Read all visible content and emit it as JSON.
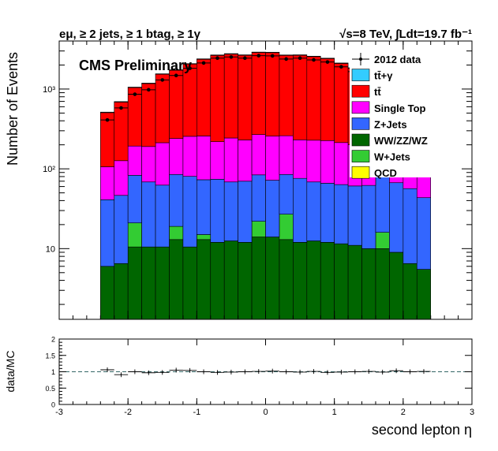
{
  "chart_data": [
    {
      "type": "bar",
      "subtype": "stacked-histogram",
      "header_left": "eμ, ≥ 2 jets, ≥ 1 btag, ≥ 1γ",
      "header_right": "√s=8 TeV, ∫Ldt=19.7 fb⁻¹",
      "annotation": "CMS Preliminary",
      "xlabel": "second lepton η",
      "ylabel": "Number of Events",
      "xlim": [
        -3,
        3
      ],
      "ylim": [
        1.3,
        4000
      ],
      "yscale": "log",
      "x_ticks": [
        "-3",
        "-2",
        "-1",
        "0",
        "1",
        "2",
        "3"
      ],
      "y_ticks": [
        {
          "value": 10,
          "label": "10"
        },
        {
          "value": 100,
          "label": "10²"
        },
        {
          "value": 1000,
          "label": "10³"
        }
      ],
      "legend_position": "top-right",
      "bin_edges": [
        -2.4,
        -2.2,
        -2.0,
        -1.8,
        -1.6,
        -1.4,
        -1.2,
        -1.0,
        -0.8,
        -0.6,
        -0.4,
        -0.2,
        0.0,
        0.2,
        0.4,
        0.6,
        0.8,
        1.0,
        1.2,
        1.4,
        1.6,
        1.8,
        2.0,
        2.2,
        2.4
      ],
      "stack_order_bottom_to_top": [
        "WW/ZZ/WZ",
        "W+Jets",
        "Z+Jets",
        "Single Top",
        "tt̄",
        "QCD",
        "tt̄+γ"
      ],
      "series": [
        {
          "name": "2012 data",
          "kind": "data",
          "color": "#000000",
          "values": [
            410,
            580,
            860,
            980,
            1300,
            1480,
            1820,
            2120,
            2440,
            2520,
            2440,
            2620,
            2600,
            2380,
            2440,
            2320,
            2180,
            1900,
            1650,
            1380,
            1040,
            830,
            580,
            410
          ]
        },
        {
          "name": "tt̄+γ",
          "kind": "stack",
          "color": "#33ccff",
          "values": [
            8,
            10,
            14,
            16,
            20,
            24,
            28,
            32,
            36,
            36,
            34,
            36,
            36,
            34,
            34,
            32,
            32,
            28,
            26,
            22,
            18,
            14,
            10,
            8
          ]
        },
        {
          "name": "tt̄",
          "kind": "stack",
          "color": "#ff0000",
          "values": [
            400,
            560,
            850,
            980,
            1320,
            1480,
            1800,
            2100,
            2420,
            2500,
            2420,
            2600,
            2600,
            2380,
            2420,
            2320,
            2180,
            1880,
            1620,
            1360,
            1040,
            840,
            580,
            400
          ]
        },
        {
          "name": "Single Top",
          "kind": "stack",
          "color": "#ff00ff",
          "values": [
            65,
            80,
            110,
            122,
            150,
            155,
            175,
            185,
            145,
            175,
            160,
            185,
            185,
            175,
            155,
            160,
            160,
            150,
            140,
            125,
            115,
            95,
            90,
            85
          ]
        },
        {
          "name": "Z+Jets",
          "kind": "stack",
          "color": "#3366ff",
          "values": [
            35,
            40,
            62,
            58,
            52,
            66,
            70,
            58,
            62,
            56,
            58,
            62,
            58,
            58,
            64,
            56,
            54,
            52,
            50,
            52,
            72,
            58,
            50,
            38
          ]
        },
        {
          "name": "WW/ZZ/WZ",
          "kind": "stack",
          "color": "#006600",
          "values": [
            6,
            6.5,
            10.5,
            10.5,
            10.5,
            13,
            10.5,
            13,
            12,
            12.5,
            12,
            14,
            14,
            13,
            12,
            12.5,
            12,
            11.5,
            11,
            10,
            10,
            9,
            6.5,
            5.5
          ]
        },
        {
          "name": "W+Jets",
          "kind": "stack",
          "color": "#33cc33",
          "values": [
            0,
            0,
            10.5,
            0,
            0,
            6,
            0,
            2,
            0,
            0,
            0,
            8,
            0,
            14,
            0,
            0,
            0,
            0,
            0,
            0,
            6,
            0,
            0,
            0
          ]
        },
        {
          "name": "QCD",
          "kind": "stack",
          "color": "#ffff00",
          "values": [
            0,
            0,
            0,
            0,
            0,
            0,
            0,
            0,
            0,
            0,
            0,
            0,
            0,
            0,
            0,
            0,
            0,
            0,
            0,
            0,
            0,
            0,
            0,
            0
          ]
        }
      ]
    },
    {
      "type": "scatter",
      "subtype": "ratio-panel",
      "xlabel": "second lepton η",
      "ylabel": "data/MC",
      "xlim": [
        -3,
        3
      ],
      "ylim": [
        0,
        2
      ],
      "x_ticks": [
        "-3",
        "-2",
        "-1",
        "0",
        "1",
        "2",
        "3"
      ],
      "y_ticks": [
        "0",
        "0.5",
        "1",
        "1.5",
        "2"
      ],
      "reference_line": 1,
      "reference_line_color": "#336666",
      "bin_edges": [
        -2.4,
        -2.2,
        -2.0,
        -1.8,
        -1.6,
        -1.4,
        -1.2,
        -1.0,
        -0.8,
        -0.6,
        -0.4,
        -0.2,
        0.0,
        0.2,
        0.4,
        0.6,
        0.8,
        1.0,
        1.2,
        1.4,
        1.6,
        1.8,
        2.0,
        2.2,
        2.4
      ],
      "values": [
        1.06,
        0.91,
        1.0,
        0.97,
        0.98,
        1.05,
        1.04,
        1.0,
        0.98,
        0.99,
        1.0,
        1.01,
        1.02,
        1.0,
        0.99,
        1.01,
        0.98,
        0.99,
        1.0,
        1.01,
        0.99,
        1.03,
        1.0,
        1.01
      ]
    }
  ]
}
